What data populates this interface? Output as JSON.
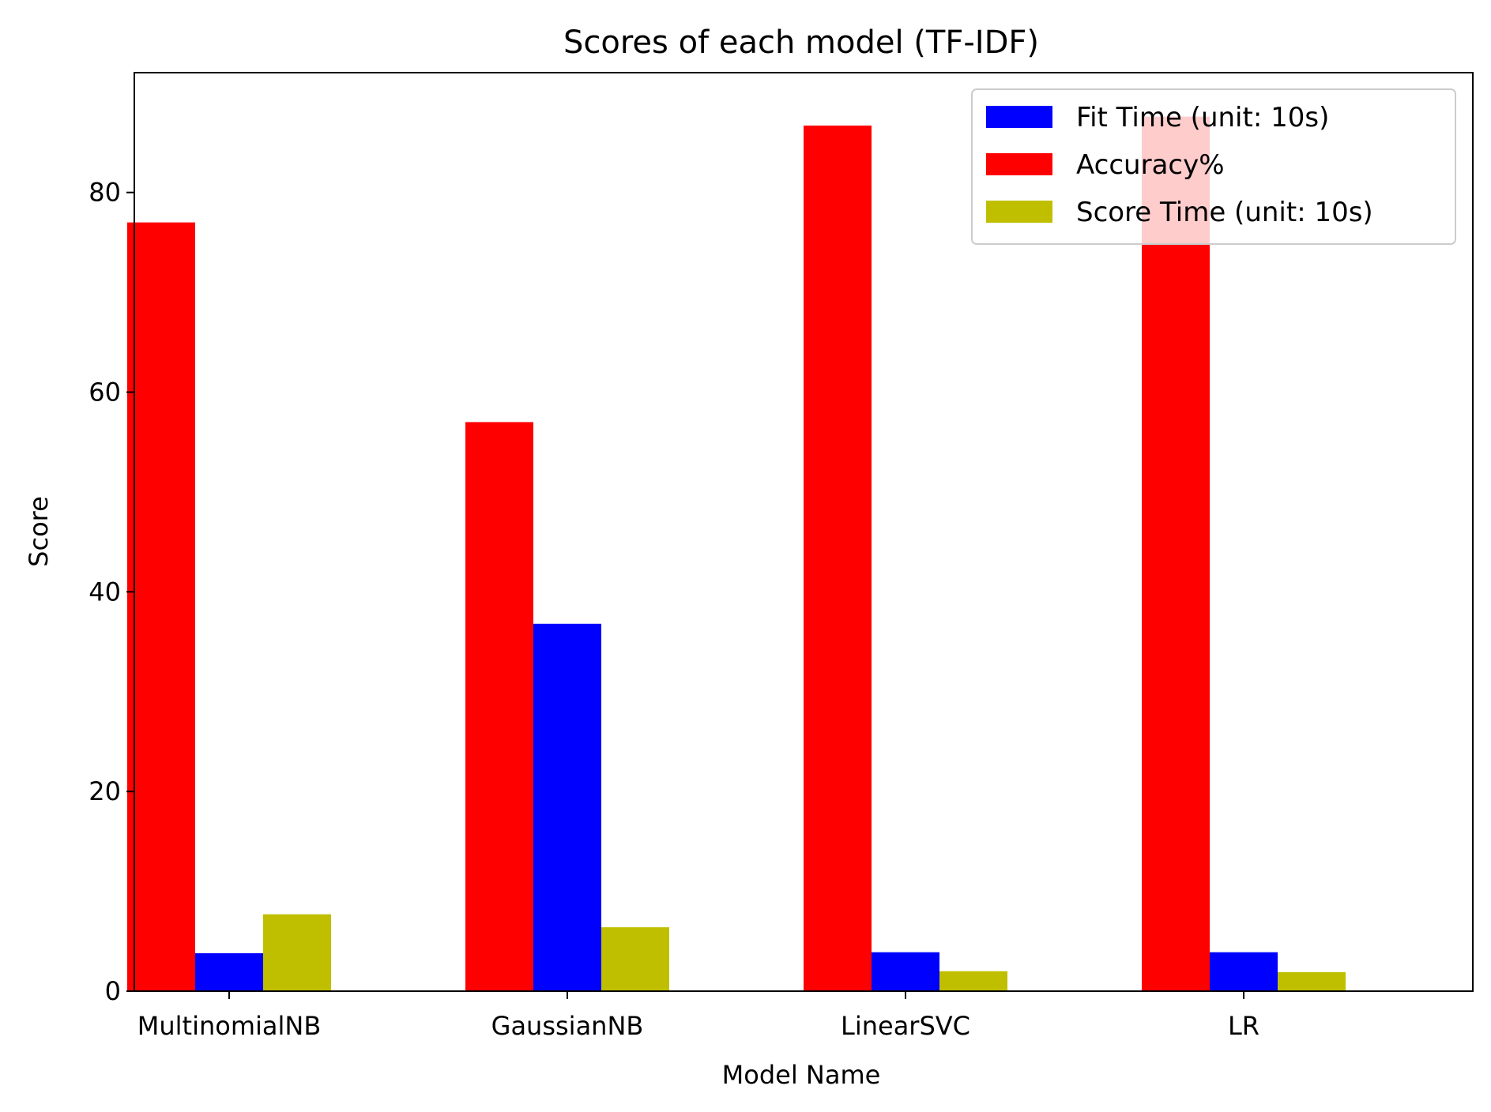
{
  "chart_data": {
    "type": "bar",
    "title": "Scores of each model (TF-IDF)",
    "xlabel": "Model Name",
    "ylabel": "Score",
    "categories": [
      "MultinomialNB",
      "GaussianNB",
      "LinearSVC",
      "LR"
    ],
    "ylim": [
      0,
      92
    ],
    "yticks": [
      0,
      20,
      40,
      60,
      80
    ],
    "grid": false,
    "legend_position": "top-right",
    "series": [
      {
        "name": "Accuracy%",
        "color": "#ff0000",
        "values": [
          77.0,
          57.0,
          86.7,
          87.6
        ]
      },
      {
        "name": "Fit Time (unit: 10s)",
        "color": "#0000ff",
        "values": [
          3.8,
          36.8,
          3.9,
          3.9
        ]
      },
      {
        "name": "Score Time (unit: 10s)",
        "color": "#bfbf00",
        "values": [
          7.7,
          6.4,
          2.0,
          1.9
        ]
      }
    ],
    "legend_order": [
      "Fit Time (unit: 10s)",
      "Accuracy%",
      "Score Time (unit: 10s)"
    ]
  }
}
